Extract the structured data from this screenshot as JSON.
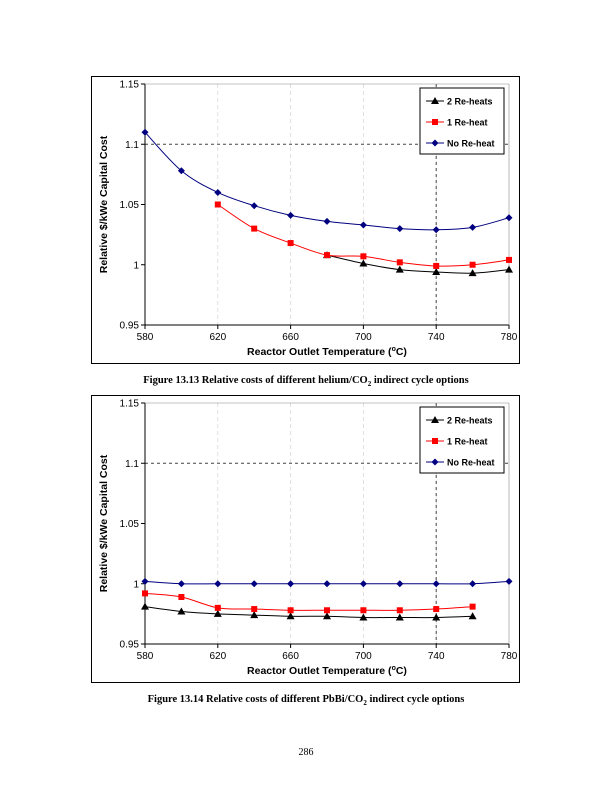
{
  "page_number": "286",
  "captions": [
    {
      "prefix": "Figure 13.13 Relative costs of different helium/CO",
      "sub": "2",
      "suffix": " indirect cycle options"
    },
    {
      "prefix": "Figure 13.14 Relative costs of different PbBi/CO",
      "sub": "2",
      "suffix": " indirect cycle options"
    }
  ],
  "colors": {
    "two_reheats": "#000000",
    "one_reheat": "#ff0000",
    "no_reheat": "#000080",
    "reference_line": "#444444",
    "grid": "#cccccc"
  },
  "chart_data": [
    {
      "type": "line",
      "title": "",
      "xlabel": "Reactor Outlet Temperature",
      "xlabel_unit": "(oC)",
      "ylabel": "Relative $/kWe Capital Cost",
      "xlim": [
        580,
        780
      ],
      "ylim": [
        0.95,
        1.15
      ],
      "xticks": [
        580,
        620,
        660,
        700,
        740,
        780
      ],
      "yticks": [
        0.95,
        1,
        1.05,
        1.1,
        1.15
      ],
      "ytick_labels": [
        "0.95",
        "1",
        "1.05",
        "1.1",
        "1.15"
      ],
      "reference_lines": {
        "y": 1.1,
        "x": 740
      },
      "legend_position": "top-right",
      "series": [
        {
          "name": "2 Re-heats",
          "marker": "triangle",
          "color": "#000000",
          "x": [
            680,
            700,
            720,
            740,
            760,
            780
          ],
          "y": [
            1.008,
            1.001,
            0.996,
            0.994,
            0.993,
            0.996
          ]
        },
        {
          "name": "1 Re-heat",
          "marker": "square",
          "color": "#ff0000",
          "x": [
            620,
            640,
            660,
            680,
            700,
            720,
            740,
            760,
            780
          ],
          "y": [
            1.05,
            1.03,
            1.018,
            1.008,
            1.007,
            1.002,
            0.999,
            1.0,
            1.004
          ]
        },
        {
          "name": "No Re-heat",
          "marker": "diamond",
          "color": "#000080",
          "x": [
            580,
            600,
            620,
            640,
            660,
            680,
            700,
            720,
            740,
            760,
            780
          ],
          "y": [
            1.11,
            1.078,
            1.06,
            1.049,
            1.041,
            1.036,
            1.033,
            1.03,
            1.029,
            1.031,
            1.039
          ]
        }
      ]
    },
    {
      "type": "line",
      "title": "",
      "xlabel": "Reactor Outlet Temperature",
      "xlabel_unit": "(oC)",
      "ylabel": "Relative $/kWe Capital Cost",
      "xlim": [
        580,
        780
      ],
      "ylim": [
        0.95,
        1.15
      ],
      "xticks": [
        580,
        620,
        660,
        700,
        740,
        780
      ],
      "yticks": [
        0.95,
        1,
        1.05,
        1.1,
        1.15
      ],
      "ytick_labels": [
        "0.95",
        "1",
        "1.05",
        "1.1",
        "1.15"
      ],
      "reference_lines": {
        "y": 1.1,
        "x": 740
      },
      "legend_position": "top-right",
      "series": [
        {
          "name": "2 Re-heats",
          "marker": "triangle",
          "color": "#000000",
          "x": [
            580,
            600,
            620,
            640,
            660,
            680,
            700,
            720,
            740,
            760
          ],
          "y": [
            0.981,
            0.977,
            0.975,
            0.974,
            0.973,
            0.973,
            0.972,
            0.972,
            0.972,
            0.973
          ]
        },
        {
          "name": "1 Re-heat",
          "marker": "square",
          "color": "#ff0000",
          "x": [
            580,
            600,
            620,
            640,
            660,
            680,
            700,
            720,
            740,
            760
          ],
          "y": [
            0.992,
            0.989,
            0.98,
            0.979,
            0.978,
            0.978,
            0.978,
            0.978,
            0.979,
            0.981
          ]
        },
        {
          "name": "No Re-heat",
          "marker": "diamond",
          "color": "#000080",
          "x": [
            580,
            600,
            620,
            640,
            660,
            680,
            700,
            720,
            740,
            760,
            780
          ],
          "y": [
            1.002,
            1.0,
            1.0,
            1.0,
            1.0,
            1.0,
            1.0,
            1.0,
            1.0,
            1.0,
            1.002
          ]
        }
      ]
    }
  ]
}
